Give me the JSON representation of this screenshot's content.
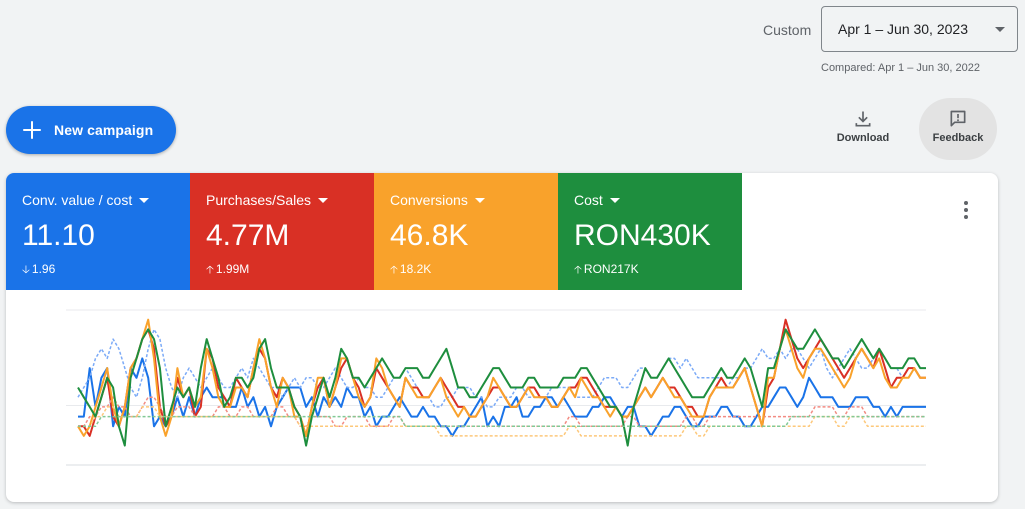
{
  "date_range": {
    "label": "Custom",
    "value": "Apr 1 – Jun 30, 2023",
    "compared": "Compared: Apr 1 – Jun 30, 2022"
  },
  "new_campaign_label": "New campaign",
  "toolbar": {
    "download_label": "Download",
    "feedback_label": "Feedback"
  },
  "metrics": [
    {
      "name": "Conv. value / cost",
      "value": "11.10",
      "change": "1.96",
      "direction": "down",
      "color": "#1a73e8"
    },
    {
      "name": "Purchases/Sales",
      "value": "4.77M",
      "change": "1.99M",
      "direction": "up",
      "color": "#d93025"
    },
    {
      "name": "Conversions",
      "value": "46.8K",
      "change": "18.2K",
      "direction": "up",
      "color": "#f9a22b"
    },
    {
      "name": "Cost",
      "value": "RON430K",
      "change": "RON217K",
      "direction": "up",
      "color": "#1e8e3e"
    }
  ],
  "chart_data": {
    "type": "line",
    "grid": true,
    "series": [
      {
        "metric": "Conv. value / cost",
        "period": "current",
        "color": "#1a73e8",
        "values": [
          5,
          5,
          10,
          6,
          9,
          10,
          4,
          6,
          5,
          10,
          9,
          11,
          9,
          4,
          5,
          4,
          5,
          7,
          5,
          7,
          5,
          7,
          8,
          7,
          7,
          7,
          6,
          6,
          8,
          6,
          7,
          5,
          6,
          4,
          6,
          7,
          8,
          8,
          8,
          6,
          7,
          5,
          7,
          6,
          7,
          6,
          8,
          7,
          7,
          5,
          6,
          4,
          5,
          5,
          6,
          7,
          6,
          5,
          5,
          6,
          5,
          5,
          4,
          4,
          3,
          4,
          4,
          5,
          6,
          7,
          4,
          5,
          4,
          6,
          6,
          7,
          5,
          5,
          6,
          6,
          7,
          7,
          6,
          7,
          6,
          5,
          5,
          5,
          6,
          6,
          7,
          7,
          6,
          5,
          6,
          6,
          4,
          4,
          3,
          4,
          5,
          5,
          6,
          6,
          5,
          4,
          4,
          5,
          5,
          5,
          6,
          6,
          5,
          5,
          4,
          4,
          5,
          6,
          6,
          7,
          8,
          8,
          7,
          6,
          7,
          9,
          8,
          7,
          7,
          7,
          6,
          6,
          6,
          7,
          7,
          7,
          6,
          6,
          5,
          6,
          5,
          6,
          6,
          6,
          6,
          6
        ]
      },
      {
        "metric": "Conv. value / cost",
        "period": "compared",
        "color": "#7baaf7",
        "values": [
          7,
          8,
          9,
          11,
          12,
          11,
          13,
          12,
          10,
          8,
          7,
          9,
          12,
          14,
          13,
          10,
          8,
          7,
          9,
          10,
          9,
          8,
          9,
          10,
          9,
          8,
          8,
          9,
          10,
          9,
          11,
          10,
          9,
          8,
          8,
          7,
          8,
          9,
          8,
          9,
          9,
          8,
          8,
          9,
          10,
          9,
          8,
          8,
          9,
          8,
          8,
          7,
          7,
          8,
          9,
          9,
          10,
          9,
          8,
          7,
          7,
          6,
          6,
          7,
          7,
          8,
          8,
          8,
          7,
          7,
          6,
          6,
          7,
          7,
          7,
          8,
          8,
          7,
          7,
          7,
          7,
          8,
          8,
          8,
          8,
          7,
          7,
          7,
          7,
          8,
          9,
          9,
          9,
          8,
          8,
          9,
          10,
          10,
          9,
          9,
          10,
          11,
          11,
          10,
          11,
          10,
          9,
          9,
          9,
          9,
          9,
          8,
          9,
          9,
          10,
          10,
          11,
          12,
          11,
          11,
          12,
          11,
          12,
          12,
          11,
          10,
          11,
          12,
          10,
          9,
          10,
          11,
          12,
          11,
          10,
          10,
          11,
          12,
          11,
          10,
          10,
          9,
          10,
          10,
          9,
          9
        ]
      },
      {
        "metric": "Purchases/Sales",
        "period": "current",
        "color": "#d93025",
        "values": [
          4,
          4,
          3,
          5,
          7,
          9,
          5,
          4,
          6,
          10,
          11,
          13,
          14,
          12,
          6,
          4,
          5,
          9,
          7,
          8,
          5,
          6,
          12,
          11,
          8,
          7,
          6,
          9,
          8,
          7,
          10,
          12,
          11,
          8,
          7,
          9,
          8,
          6,
          5,
          3,
          6,
          8,
          9,
          6,
          8,
          10,
          11,
          9,
          8,
          6,
          7,
          10,
          9,
          8,
          7,
          6,
          9,
          8,
          8,
          7,
          7,
          8,
          9,
          8,
          7,
          6,
          6,
          5,
          5,
          6,
          7,
          8,
          8,
          7,
          6,
          6,
          7,
          8,
          8,
          7,
          7,
          6,
          6,
          7,
          8,
          8,
          9,
          9,
          8,
          7,
          6,
          6,
          6,
          5,
          5,
          6,
          7,
          8,
          7,
          8,
          9,
          8,
          8,
          7,
          6,
          6,
          5,
          5,
          7,
          8,
          9,
          8,
          8,
          9,
          10,
          8,
          6,
          4,
          8,
          9,
          12,
          15,
          13,
          11,
          10,
          11,
          12,
          13,
          12,
          11,
          10,
          9,
          10,
          11,
          12,
          11,
          10,
          12,
          10,
          8,
          9,
          9,
          10,
          10,
          9,
          9
        ]
      },
      {
        "metric": "Purchases/Sales",
        "period": "compared",
        "color": "#f28b82",
        "values": [
          4,
          4,
          5,
          5,
          6,
          6,
          7,
          6,
          6,
          5,
          5,
          6,
          7,
          7,
          6,
          5,
          5,
          6,
          6,
          6,
          5,
          5,
          5,
          5,
          6,
          6,
          5,
          5,
          6,
          6,
          5,
          5,
          5,
          5,
          6,
          6,
          5,
          5,
          4,
          4,
          5,
          5,
          5,
          5,
          4,
          4,
          5,
          5,
          5,
          5,
          4,
          4,
          4,
          4,
          5,
          5,
          4,
          4,
          4,
          4,
          4,
          4,
          4,
          4,
          4,
          4,
          4,
          4,
          4,
          4,
          4,
          4,
          4,
          4,
          4,
          4,
          4,
          4,
          4,
          4,
          4,
          4,
          4,
          4,
          5,
          5,
          4,
          4,
          4,
          4,
          4,
          4,
          4,
          4,
          5,
          5,
          4,
          4,
          4,
          4,
          4,
          4,
          4,
          4,
          5,
          5,
          4,
          4,
          5,
          5,
          5,
          5,
          5,
          5,
          5,
          5,
          5,
          5,
          5,
          5,
          5,
          5,
          5,
          5,
          5,
          5,
          6,
          6,
          6,
          6,
          5,
          5,
          6,
          6,
          6,
          5,
          5,
          5,
          5,
          5,
          5,
          5,
          5,
          5,
          5,
          5
        ]
      },
      {
        "metric": "Conversions",
        "period": "current",
        "color": "#f9a22b",
        "values": [
          4,
          3,
          4,
          6,
          8,
          10,
          6,
          4,
          6,
          10,
          11,
          13,
          15,
          11,
          5,
          3,
          5,
          10,
          7,
          8,
          6,
          7,
          12,
          10,
          7,
          6,
          6,
          8,
          8,
          7,
          10,
          13,
          11,
          8,
          6,
          9,
          8,
          5,
          5,
          3,
          6,
          9,
          9,
          6,
          8,
          11,
          11,
          9,
          7,
          6,
          7,
          11,
          10,
          8,
          7,
          6,
          9,
          8,
          7,
          7,
          7,
          8,
          9,
          7,
          6,
          5,
          6,
          5,
          5,
          6,
          7,
          9,
          8,
          7,
          6,
          6,
          7,
          8,
          7,
          7,
          7,
          6,
          6,
          7,
          8,
          7,
          9,
          8,
          7,
          7,
          6,
          5,
          6,
          5,
          5,
          6,
          7,
          8,
          7,
          8,
          9,
          8,
          7,
          7,
          6,
          5,
          5,
          5,
          7,
          8,
          8,
          8,
          8,
          9,
          10,
          8,
          6,
          4,
          9,
          9,
          12,
          14,
          12,
          10,
          9,
          11,
          12,
          12,
          11,
          10,
          9,
          8,
          9,
          11,
          12,
          11,
          10,
          11,
          9,
          8,
          8,
          9,
          9,
          10,
          9,
          9
        ]
      },
      {
        "metric": "Conversions",
        "period": "compared",
        "color": "#fdc87a",
        "values": [
          4,
          4,
          4,
          5,
          5,
          6,
          6,
          5,
          5,
          5,
          5,
          6,
          6,
          6,
          5,
          5,
          5,
          5,
          5,
          5,
          5,
          5,
          5,
          5,
          5,
          5,
          5,
          5,
          5,
          5,
          5,
          5,
          5,
          5,
          5,
          5,
          5,
          5,
          4,
          4,
          4,
          4,
          4,
          4,
          4,
          4,
          4,
          4,
          4,
          4,
          4,
          4,
          4,
          4,
          4,
          4,
          4,
          4,
          4,
          4,
          4,
          4,
          3,
          3,
          3,
          3,
          3,
          3,
          3,
          3,
          3,
          3,
          3,
          3,
          3,
          3,
          3,
          3,
          3,
          3,
          3,
          3,
          3,
          3,
          4,
          4,
          3,
          3,
          3,
          3,
          3,
          3,
          3,
          3,
          3,
          3,
          3,
          3,
          3,
          3,
          3,
          3,
          3,
          3,
          4,
          4,
          3,
          3,
          4,
          4,
          4,
          4,
          4,
          4,
          4,
          4,
          4,
          4,
          4,
          4,
          4,
          4,
          4,
          4,
          4,
          4,
          5,
          5,
          5,
          5,
          4,
          4,
          5,
          5,
          5,
          4,
          4,
          4,
          4,
          4,
          4,
          4,
          4,
          4,
          4,
          4
        ]
      },
      {
        "metric": "Cost",
        "period": "current",
        "color": "#1e8e3e",
        "values": [
          8,
          7,
          6,
          5,
          7,
          9,
          8,
          4,
          2,
          9,
          11,
          13,
          14,
          13,
          10,
          4,
          6,
          8,
          7,
          8,
          6,
          10,
          13,
          11,
          9,
          6,
          7,
          9,
          9,
          8,
          9,
          12,
          13,
          10,
          8,
          8,
          8,
          6,
          5,
          2,
          5,
          7,
          9,
          7,
          9,
          12,
          11,
          9,
          9,
          8,
          9,
          10,
          11,
          10,
          9,
          9,
          10,
          10,
          10,
          9,
          9,
          10,
          11,
          12,
          10,
          8,
          8,
          7,
          7,
          8,
          9,
          10,
          10,
          9,
          8,
          8,
          8,
          9,
          9,
          8,
          8,
          8,
          8,
          9,
          9,
          9,
          10,
          10,
          9,
          8,
          7,
          6,
          6,
          5,
          2,
          6,
          8,
          10,
          9,
          9,
          10,
          11,
          10,
          9,
          8,
          7,
          7,
          7,
          8,
          9,
          10,
          9,
          9,
          10,
          11,
          10,
          8,
          6,
          10,
          10,
          12,
          14,
          13,
          12,
          12,
          13,
          14,
          13,
          12,
          11,
          11,
          10,
          11,
          12,
          13,
          12,
          11,
          12,
          11,
          10,
          10,
          10,
          11,
          11,
          10,
          10
        ]
      },
      {
        "metric": "Cost",
        "period": "compared",
        "color": "#81c995",
        "values": [
          4,
          4,
          4,
          4,
          5,
          5,
          5,
          5,
          5,
          5,
          5,
          5,
          5,
          5,
          5,
          5,
          5,
          5,
          5,
          5,
          5,
          5,
          5,
          5,
          5,
          5,
          5,
          5,
          5,
          5,
          5,
          5,
          5,
          5,
          5,
          5,
          5,
          5,
          5,
          5,
          5,
          5,
          5,
          5,
          5,
          5,
          5,
          5,
          5,
          5,
          5,
          5,
          5,
          5,
          5,
          5,
          4,
          4,
          4,
          4,
          4,
          4,
          4,
          4,
          4,
          4,
          4,
          4,
          4,
          4,
          4,
          4,
          4,
          4,
          4,
          4,
          4,
          4,
          4,
          4,
          4,
          4,
          4,
          4,
          4,
          4,
          4,
          4,
          4,
          4,
          4,
          4,
          4,
          4,
          4,
          4,
          4,
          4,
          4,
          4,
          4,
          4,
          4,
          4,
          4,
          4,
          4,
          4,
          4,
          4,
          4,
          4,
          4,
          4,
          4,
          4,
          4,
          4,
          4,
          4,
          4,
          4,
          5,
          5,
          5,
          5,
          5,
          5,
          5,
          5,
          5,
          5,
          5,
          5,
          5,
          5,
          5,
          5,
          5,
          5,
          5,
          5,
          5,
          5,
          5,
          5
        ]
      }
    ]
  }
}
